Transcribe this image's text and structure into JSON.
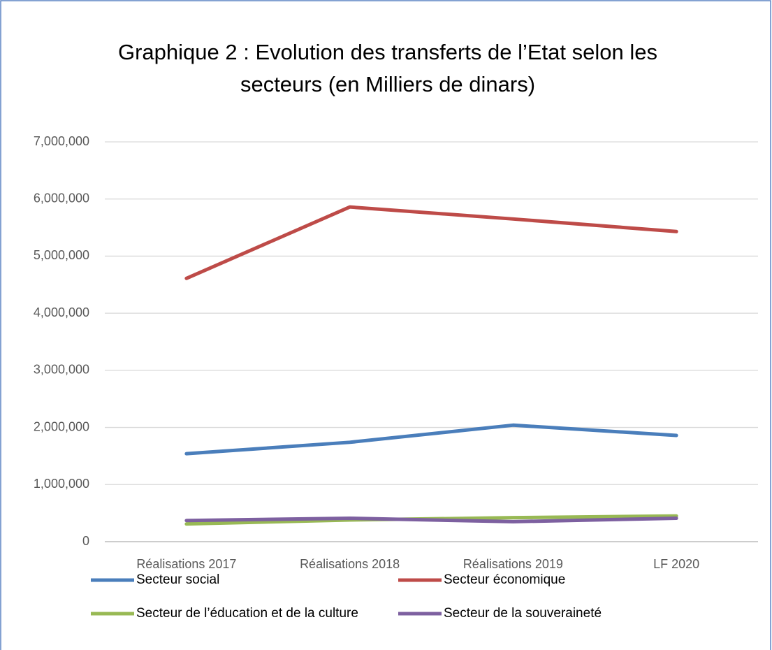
{
  "chart_data": {
    "type": "line",
    "title": "Graphique 2 : Evolution des transferts de l’Etat selon les secteurs (en Milliers de dinars)",
    "categories": [
      "Réalisations 2017",
      "Réalisations 2018",
      "Réalisations 2019",
      "LF 2020"
    ],
    "series": [
      {
        "name": "Secteur social",
        "color": "#4a7ebb",
        "values": [
          1540000,
          1740000,
          2040000,
          1860000
        ]
      },
      {
        "name": "Secteur économique",
        "color": "#be4b48",
        "values": [
          4610000,
          5860000,
          5650000,
          5430000
        ]
      },
      {
        "name": "Secteur de l’éducation et de la culture",
        "color": "#98b954",
        "values": [
          310000,
          380000,
          420000,
          450000
        ]
      },
      {
        "name": "Secteur de la souveraineté",
        "color": "#7d60a0",
        "values": [
          370000,
          410000,
          350000,
          410000
        ]
      }
    ],
    "ylim": [
      0,
      7000000
    ],
    "yticks": [
      0,
      {
        "value": 1000000,
        "label": "1,000,000"
      },
      {
        "value": 2000000,
        "label": "2,000,000"
      },
      {
        "value": 3000000,
        "label": "3,000,000"
      },
      {
        "value": 4000000,
        "label": "4,000,000"
      },
      {
        "value": 5000000,
        "label": "5,000,000"
      },
      {
        "value": 6000000,
        "label": "6,000,000"
      },
      {
        "value": 7000000,
        "label": "7,000,000"
      }
    ],
    "grid": true
  }
}
